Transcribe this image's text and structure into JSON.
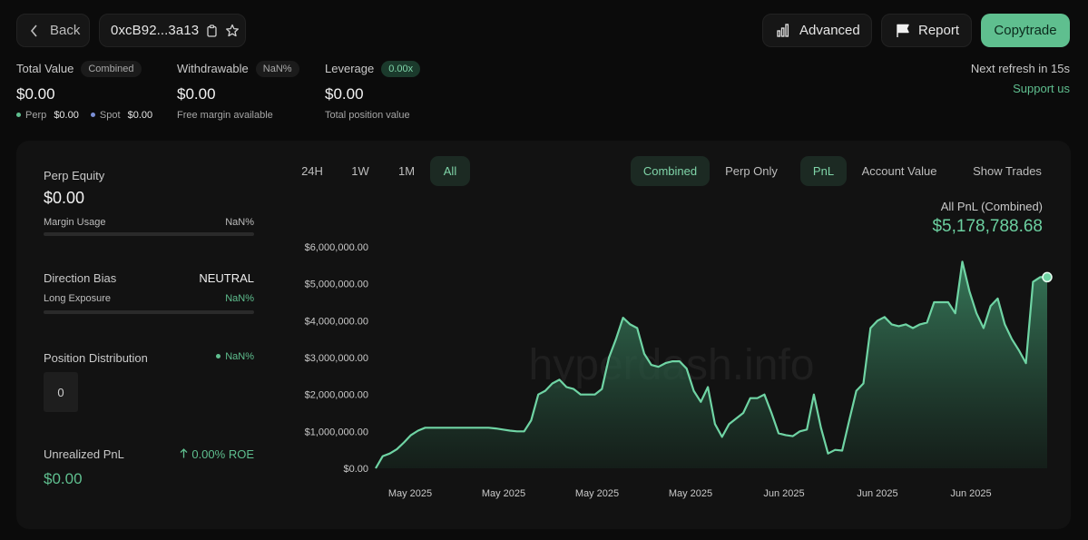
{
  "header": {
    "back_label": "Back",
    "address": "0xcB92...3a13",
    "advanced_label": "Advanced",
    "report_label": "Report",
    "copytrade_label": "Copytrade"
  },
  "stats": {
    "total_value": {
      "label": "Total Value",
      "badge": "Combined",
      "value": "$0.00",
      "perp_label": "Perp",
      "perp_value": "$0.00",
      "spot_label": "Spot",
      "spot_value": "$0.00"
    },
    "withdrawable": {
      "label": "Withdrawable",
      "badge": "NaN%",
      "value": "$0.00",
      "sub": "Free margin available"
    },
    "leverage": {
      "label": "Leverage",
      "badge": "0.00x",
      "value": "$0.00",
      "sub": "Total position value"
    },
    "refresh_note": "Next refresh in 15s",
    "support_label": "Support us"
  },
  "left_panel": {
    "perp_equity_label": "Perp Equity",
    "perp_equity_value": "$0.00",
    "margin_usage_label": "Margin Usage",
    "margin_usage_value": "NaN%",
    "direction_bias_label": "Direction Bias",
    "direction_bias_value": "NEUTRAL",
    "long_exposure_label": "Long Exposure",
    "long_exposure_value": "NaN%",
    "position_distribution_label": "Position Distribution",
    "position_distribution_value": "NaN%",
    "position_count": "0",
    "unrealized_pnl_label": "Unrealized PnL",
    "roe_value": "0.00% ROE",
    "unrealized_pnl_value": "$0.00"
  },
  "tabs": {
    "range": [
      "24H",
      "1W",
      "1M",
      "All"
    ],
    "range_active": "All",
    "mode": [
      "Combined",
      "Perp Only"
    ],
    "mode_active": "Combined",
    "metric": [
      "PnL",
      "Account Value"
    ],
    "metric_active": "PnL",
    "show_trades_label": "Show Trades"
  },
  "chart_header": {
    "title": "All PnL (Combined)",
    "total": "$5,178,788.68"
  },
  "colors": {
    "accent": "#5fbf8f",
    "background": "#0b0b0b",
    "panel": "#121212"
  },
  "chart_data": {
    "type": "area",
    "title": "All PnL (Combined)",
    "watermark": "hyperdash.info",
    "ylim": [
      0,
      6000000
    ],
    "y_ticks": [
      "$0.00",
      "$1,000,000.00",
      "$2,000,000.00",
      "$3,000,000.00",
      "$4,000,000.00",
      "$5,000,000.00",
      "$6,000,000.00"
    ],
    "x_ticks": [
      "May 2025",
      "May 2025",
      "May 2025",
      "May 2025",
      "Jun 2025",
      "Jun 2025",
      "Jun 2025"
    ],
    "series": [
      {
        "values": [
          0,
          330000,
          400000,
          520000,
          700000,
          900000,
          1020000,
          1100000,
          1100000,
          1100000,
          1100000,
          1100000,
          1100000,
          1100000,
          1100000,
          1100000,
          1100000,
          1080000,
          1050000,
          1020000,
          1000000,
          1000000,
          1300000,
          2000000,
          2100000,
          2300000,
          2400000,
          2200000,
          2150000,
          2000000,
          2000000,
          2000000,
          2150000,
          3000000,
          3500000,
          4080000,
          3900000,
          3800000,
          3100000,
          2800000,
          2750000,
          2850000,
          2900000,
          2900000,
          2700000,
          2100000,
          1800000,
          2200000,
          1200000,
          850000,
          1200000,
          1350000,
          1500000,
          1900000,
          1900000,
          2000000,
          1500000,
          950000,
          900000,
          870000,
          1000000,
          1050000,
          2000000,
          1100000,
          400000,
          500000,
          480000,
          1300000,
          2100000,
          2300000,
          3800000,
          4000000,
          4100000,
          3900000,
          3850000,
          3900000,
          3800000,
          3900000,
          3950000,
          4500000,
          4500000,
          4500000,
          4200000,
          5600000,
          4800000,
          4200000,
          3800000,
          4400000,
          4600000,
          3900000,
          3500000,
          3200000,
          2850000,
          5050000,
          5178789,
          5178789
        ]
      }
    ]
  }
}
